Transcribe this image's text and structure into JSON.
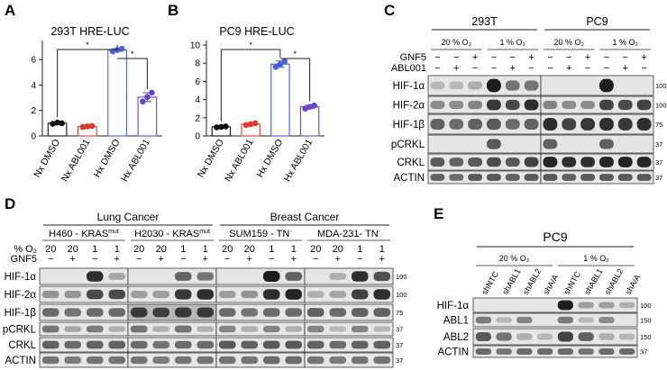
{
  "panelA": {
    "letter": "A",
    "title": "293T HRE-LUC",
    "yticks": [
      "0",
      "2",
      "4",
      "6"
    ],
    "categories": [
      "Nx DMSO",
      "Nx ABL001",
      "Hx DMSO",
      "Hx ABL001"
    ],
    "sig": [
      "*",
      "*"
    ]
  },
  "panelB": {
    "letter": "B",
    "title": "PC9 HRE-LUC",
    "yticks": [
      "0",
      "2",
      "4",
      "6",
      "8",
      "10"
    ],
    "categories": [
      "Nx DMSO",
      "Nx ABL001",
      "Hx DMSO",
      "Hx ABL001"
    ],
    "sig": [
      "*",
      "*"
    ]
  },
  "chart_data": [
    {
      "type": "bar",
      "title": "293T HRE-LUC",
      "categories": [
        "Nx DMSO",
        "Nx ABL001",
        "Hx DMSO",
        "Hx ABL001"
      ],
      "values": [
        1.0,
        0.75,
        6.75,
        3.05
      ],
      "errors": [
        0.1,
        0.1,
        0.1,
        0.35
      ],
      "points": [
        [
          0.95,
          1.05,
          1.0
        ],
        [
          0.7,
          0.75,
          0.78
        ],
        [
          6.65,
          6.75,
          6.85
        ],
        [
          2.7,
          3.05,
          3.4
        ]
      ],
      "colors": [
        "#111111",
        "#d93a2b",
        "#4a5fd6",
        "#6a44c4"
      ],
      "ylim": [
        0,
        7.5
      ],
      "yticks": [
        0,
        2,
        4,
        6
      ]
    },
    {
      "type": "bar",
      "title": "PC9 HRE-LUC",
      "categories": [
        "Nx DMSO",
        "Nx ABL001",
        "Hx DMSO",
        "Hx ABL001"
      ],
      "values": [
        1.0,
        1.3,
        7.9,
        3.2
      ],
      "errors": [
        0.05,
        0.1,
        0.35,
        0.2
      ],
      "points": [
        [
          0.95,
          1.0,
          1.05
        ],
        [
          1.2,
          1.3,
          1.4
        ],
        [
          7.6,
          7.9,
          8.2
        ],
        [
          3.0,
          3.2,
          3.35
        ]
      ],
      "colors": [
        "#111111",
        "#d93a2b",
        "#4a5fd6",
        "#6a44c4"
      ],
      "ylim": [
        0,
        10.5
      ],
      "yticks": [
        0,
        2,
        4,
        6,
        8,
        10
      ]
    }
  ],
  "panelC": {
    "letter": "C",
    "lines": [
      "293T",
      "PC9"
    ],
    "o2": [
      "20 % O₂",
      "1 % O₂",
      "20 % O₂",
      "1 % O₂"
    ],
    "treat": [
      "GNF5",
      "ABL001"
    ],
    "gnf5": [
      "−",
      "−",
      "+",
      "−",
      "−",
      "+",
      "−",
      "−",
      "+",
      "−",
      "−",
      "+"
    ],
    "abl": [
      "−",
      "+",
      "−",
      "−",
      "+",
      "−",
      "−",
      "+",
      "−",
      "−",
      "+",
      "−"
    ],
    "blots": [
      "HIF-1α",
      "HIF-2α",
      "HIF-1β",
      "pCRKL",
      "CRKL",
      "ACTIN"
    ],
    "mw": [
      "100",
      "100",
      "75",
      "37",
      "37",
      "37"
    ]
  },
  "panelD": {
    "letter": "D",
    "groups": [
      "Lung Cancer",
      "Breast Cancer"
    ],
    "lines": [
      {
        "name": "H460 - KRAS",
        "sup": "mut"
      },
      {
        "name": "H2030 - KRAS",
        "sup": "mut"
      },
      {
        "name": "SUM159 - TN",
        "sup": "-"
      },
      {
        "name": "MDA-231- TN",
        "sup": "-"
      }
    ],
    "o2_label": "% O₂",
    "gnf5_label": "GNF5",
    "o2": [
      "20",
      "20",
      "1",
      "1",
      "20",
      "20",
      "1",
      "1",
      "20",
      "20",
      "1",
      "1",
      "20",
      "20",
      "1",
      "1"
    ],
    "gnf5": [
      "−",
      "+",
      "−",
      "+",
      "−",
      "+",
      "−",
      "+",
      "−",
      "+",
      "−",
      "+",
      "−",
      "+",
      "−",
      "+"
    ],
    "blots": [
      "HIF-1α",
      "HIF-2α",
      "HIF-1β",
      "pCRKL",
      "CRKL",
      "ACTIN"
    ],
    "mw": [
      "100",
      "100",
      "75",
      "37",
      "37",
      "37"
    ]
  },
  "panelE": {
    "letter": "E",
    "line": "PC9",
    "o2": [
      "20 % O₂",
      "1 % O₂"
    ],
    "lanes": [
      "shNTC",
      "shABL1",
      "shABL2",
      "shA/A",
      "shNTC",
      "shABL1",
      "shABL2",
      "shA/A"
    ],
    "blots": [
      "HIF-1α",
      "ABL1",
      "ABL2",
      "ACTIN"
    ],
    "mw": [
      "100",
      "150",
      "150",
      "37"
    ]
  }
}
